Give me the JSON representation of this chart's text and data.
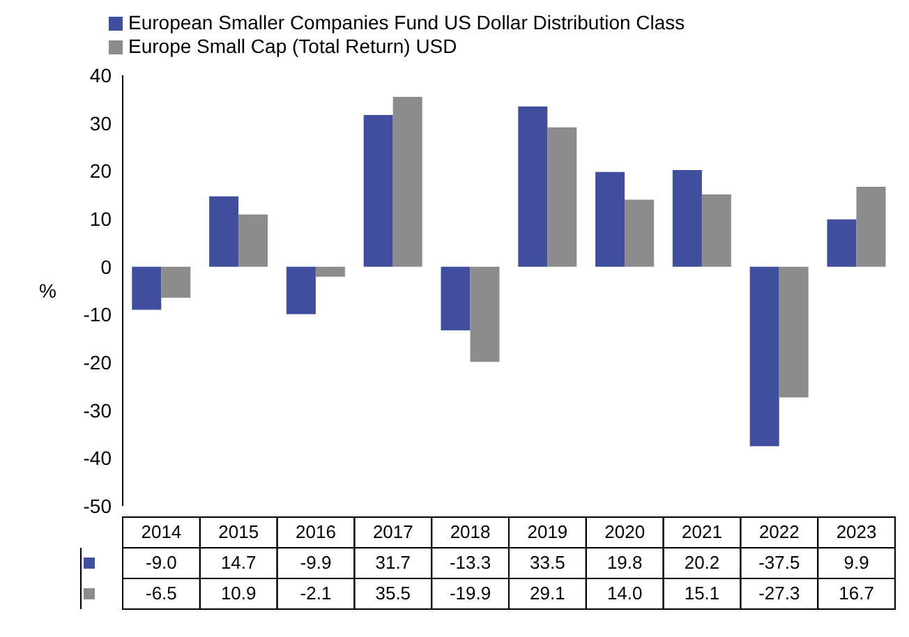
{
  "chart_data": {
    "type": "bar",
    "ylabel": "%",
    "categories": [
      "2014",
      "2015",
      "2016",
      "2017",
      "2018",
      "2019",
      "2020",
      "2021",
      "2022",
      "2023"
    ],
    "series": [
      {
        "name": "European Smaller Companies Fund US Dollar Distribution Class",
        "color": "#3f4f9e",
        "values": [
          -9.0,
          14.7,
          -9.9,
          31.7,
          -13.3,
          33.5,
          19.8,
          20.2,
          -37.5,
          9.9
        ],
        "value_labels": [
          "-9.0",
          "14.7",
          "-9.9",
          "31.7",
          "-13.3",
          "33.5",
          "19.8",
          "20.2",
          "-37.5",
          "9.9"
        ]
      },
      {
        "name": "Europe Small Cap (Total Return) USD",
        "color": "#8c8c8c",
        "values": [
          -6.5,
          10.9,
          -2.1,
          35.5,
          -19.9,
          29.1,
          14.0,
          15.1,
          -27.3,
          16.7
        ],
        "value_labels": [
          "-6.5",
          "10.9",
          "-2.1",
          "35.5",
          "-19.9",
          "29.1",
          "14.0",
          "15.1",
          "-27.3",
          "16.7"
        ]
      }
    ],
    "ylim": [
      -50,
      40
    ],
    "yticks": [
      -50,
      -40,
      -30,
      -20,
      -10,
      0,
      10,
      20,
      30,
      40
    ],
    "grid": false,
    "legend": "top left",
    "data_labels": true
  }
}
